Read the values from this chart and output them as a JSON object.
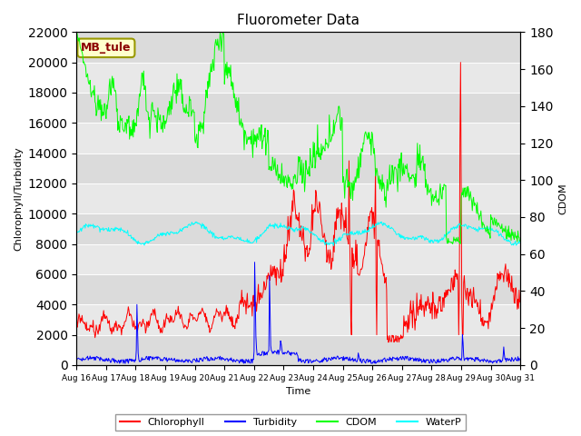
{
  "title": "Fluorometer Data",
  "xlabel": "Time",
  "ylabel_left": "Chlorophyll/Turbidity",
  "ylabel_right": "CDOM",
  "ylim_left": [
    0,
    22000
  ],
  "ylim_right": [
    0,
    180
  ],
  "yticks_left": [
    0,
    2000,
    4000,
    6000,
    8000,
    10000,
    12000,
    14000,
    16000,
    18000,
    20000,
    22000
  ],
  "yticks_right": [
    0,
    20,
    40,
    60,
    80,
    100,
    120,
    140,
    160,
    180
  ],
  "date_labels": [
    "Aug 16",
    "Aug 17",
    "Aug 18",
    "Aug 19",
    "Aug 20",
    "Aug 21",
    "Aug 22",
    "Aug 23",
    "Aug 24",
    "Aug 25",
    "Aug 26",
    "Aug 27",
    "Aug 28",
    "Aug 29",
    "Aug 30",
    "Aug 31"
  ],
  "annotation_text": "MB_tule",
  "annotation_color": "#8B0000",
  "annotation_bg": "#FFFFCC",
  "annotation_edge": "#999900",
  "bg_color": "#E8E8E8",
  "bg_band_color": "#D0D0D0",
  "colors": {
    "Chlorophyll": "red",
    "Turbidity": "blue",
    "CDOM": "#00FF00",
    "WaterP": "cyan"
  }
}
